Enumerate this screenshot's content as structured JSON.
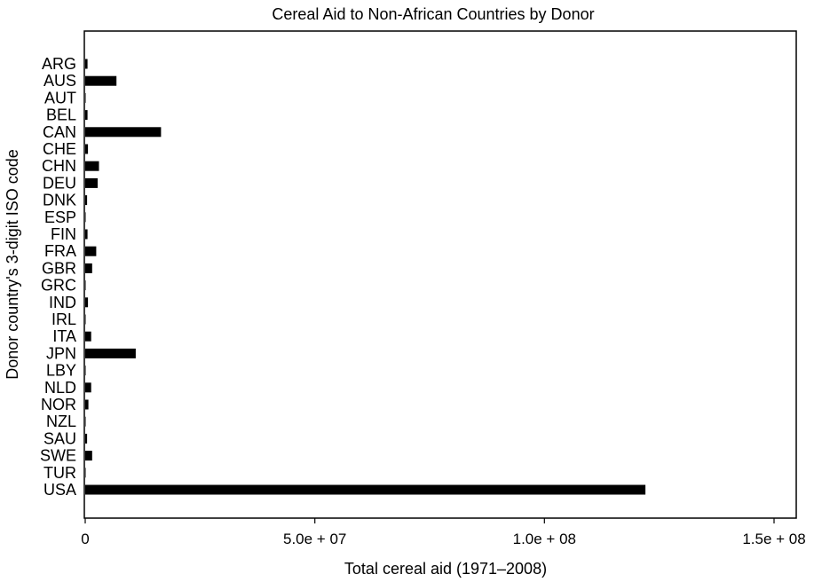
{
  "chart_data": {
    "type": "bar",
    "orientation": "horizontal",
    "title": "Cereal Aid to Non-African Countries by Donor",
    "xlabel": "Total cereal aid (1971–2008)",
    "ylabel": "Donor country's 3-digit ISO code",
    "xlim": [
      0,
      155000000
    ],
    "xticks": [
      0,
      50000000,
      100000000,
      150000000
    ],
    "xtick_labels": [
      "0",
      "5.0e + 07",
      "1.0e + 08",
      "1.5e + 08"
    ],
    "grid": false,
    "bar_color": "#000000",
    "categories": [
      "ARG",
      "AUS",
      "AUT",
      "BEL",
      "CAN",
      "CHE",
      "CHN",
      "DEU",
      "DNK",
      "ESP",
      "FIN",
      "FRA",
      "GBR",
      "GRC",
      "IND",
      "IRL",
      "ITA",
      "JPN",
      "LBY",
      "NLD",
      "NOR",
      "NZL",
      "SAU",
      "SWE",
      "TUR",
      "USA"
    ],
    "values": [
      500000,
      6800000,
      100000,
      500000,
      16500000,
      600000,
      3000000,
      2700000,
      400000,
      100000,
      500000,
      2400000,
      1500000,
      100000,
      600000,
      100000,
      1300000,
      11000000,
      100000,
      1300000,
      700000,
      100000,
      400000,
      1500000,
      100000,
      122000000
    ]
  }
}
